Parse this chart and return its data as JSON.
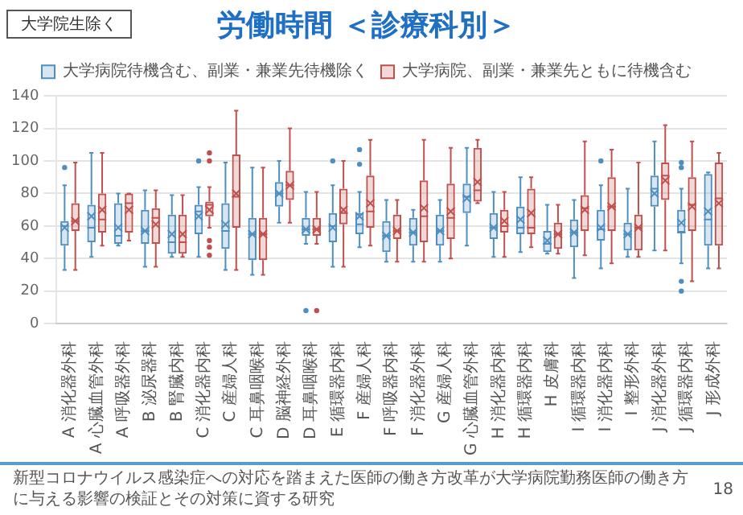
{
  "chart_data": {
    "type": "box",
    "title": "労働時間 ＜診療科別＞",
    "annotations": [
      "大学院生除く",
      "新型コロナウイルス感染症への対応を踏まえた医師の働き方改革が大学病院勤務医師の働き方に与える影響の検証とその対策に資する研究",
      "18"
    ],
    "categories": [
      "A 消化器外科",
      "A 心臓血管外科",
      "A 呼吸器外科",
      "B 泌尿器科",
      "B 腎臓内科",
      "C 消化器内科",
      "C 産婦人科",
      "C 耳鼻咽喉科",
      "D 脳神経外科",
      "D 耳鼻咽喉科",
      "E 循環器内科",
      "F 産婦人科",
      "F 呼吸器内科",
      "F 消化器外科",
      "G 産婦人科",
      "G 心臓血管外科",
      "H 消化器内科",
      "H 循環器内科",
      "H 皮膚科",
      "I 循環器内科",
      "I 消化器内科",
      "I 整形外科",
      "J 消化器外科",
      "J 循環器内科",
      "J 形成外科"
    ],
    "ylim": [
      0,
      140
    ],
    "yticks": [
      0,
      20,
      40,
      60,
      80,
      100,
      120,
      140
    ],
    "grid": "y",
    "legend": "top",
    "series": [
      {
        "name": "大学病院待機含む、副業・兼業先待機除く",
        "color": "#4f8fc0",
        "boxes": [
          {
            "low": 33,
            "q1": 48,
            "median": 60,
            "q3": 63,
            "high": 85,
            "mean": 59,
            "outliers": [
              96
            ]
          },
          {
            "low": 41,
            "q1": 50,
            "median": 59,
            "q3": 73,
            "high": 105,
            "mean": 66
          },
          {
            "low": 48,
            "q1": 49,
            "median": 54,
            "q3": 74,
            "high": 80,
            "mean": 59
          },
          {
            "low": 35,
            "q1": 49,
            "median": 57,
            "q3": 70,
            "high": 82,
            "mean": 57
          },
          {
            "low": 41,
            "q1": 43,
            "median": 50,
            "q3": 67,
            "high": 79,
            "mean": 55
          },
          {
            "low": 41,
            "q1": 55,
            "median": 69,
            "q3": 73,
            "high": 84,
            "mean": 66,
            "outliers": [
              100
            ]
          },
          {
            "low": 33,
            "q1": 46,
            "median": 57,
            "q3": 74,
            "high": 99,
            "mean": 61
          },
          {
            "low": 30,
            "q1": 39,
            "median": 55,
            "q3": 65,
            "high": 96,
            "mean": 55
          },
          {
            "low": 62,
            "q1": 72,
            "median": 80,
            "q3": 87,
            "high": 100,
            "mean": 80
          },
          {
            "low": 49,
            "q1": 54,
            "median": 58,
            "q3": 65,
            "high": 81,
            "mean": 58,
            "outliers": [
              8
            ]
          },
          {
            "low": 35,
            "q1": 50,
            "median": 60,
            "q3": 68,
            "high": 85,
            "mean": 59,
            "outliers": [
              100
            ]
          },
          {
            "low": 47,
            "q1": 55,
            "median": 61,
            "q3": 68,
            "high": 81,
            "mean": 66,
            "outliers": [
              98,
              107
            ]
          },
          {
            "low": 38,
            "q1": 44,
            "median": 54,
            "q3": 63,
            "high": 76,
            "mean": 54
          },
          {
            "low": 38,
            "q1": 48,
            "median": 56,
            "q3": 65,
            "high": 70,
            "mean": 56
          },
          {
            "low": 38,
            "q1": 48,
            "median": 57,
            "q3": 67,
            "high": 76,
            "mean": 57
          },
          {
            "low": 48,
            "q1": 68,
            "median": 78,
            "q3": 86,
            "high": 108,
            "mean": 77
          },
          {
            "low": 41,
            "q1": 52,
            "median": 59,
            "q3": 68,
            "high": 81,
            "mean": 59
          },
          {
            "low": 44,
            "q1": 55,
            "median": 59,
            "q3": 72,
            "high": 90,
            "mean": 64
          },
          {
            "low": 43,
            "q1": 44,
            "median": 49,
            "q3": 57,
            "high": 73,
            "mean": 51
          },
          {
            "low": 28,
            "q1": 47,
            "median": 56,
            "q3": 64,
            "high": 76,
            "mean": 56
          },
          {
            "low": 34,
            "q1": 51,
            "median": 58,
            "q3": 70,
            "high": 85,
            "mean": 59,
            "outliers": [
              100
            ]
          },
          {
            "low": 41,
            "q1": 45,
            "median": 55,
            "q3": 62,
            "high": 83,
            "mean": 55
          },
          {
            "low": 45,
            "q1": 72,
            "median": 83,
            "q3": 91,
            "high": 112,
            "mean": 80
          },
          {
            "low": 37,
            "q1": 56,
            "median": 56,
            "q3": 70,
            "high": 83,
            "mean": 62,
            "outliers": [
              20,
              26,
              96,
              99
            ]
          },
          {
            "low": 34,
            "q1": 48,
            "median": 64,
            "q3": 92,
            "high": 93,
            "mean": 69
          }
        ]
      },
      {
        "name": "大学病院、副業・兼業先ともに待機含む",
        "color": "#c0504d",
        "boxes": [
          {
            "low": 33,
            "q1": 57,
            "median": 63,
            "q3": 74,
            "high": 99,
            "mean": 63
          },
          {
            "low": 48,
            "q1": 56,
            "median": 64,
            "q3": 80,
            "high": 105,
            "mean": 70
          },
          {
            "low": 51,
            "q1": 56,
            "median": 74,
            "q3": 80,
            "high": 80,
            "mean": 70
          },
          {
            "low": 35,
            "q1": 49,
            "median": 65,
            "q3": 71,
            "high": 82,
            "mean": 61
          },
          {
            "low": 41,
            "q1": 43,
            "median": 50,
            "q3": 67,
            "high": 79,
            "mean": 55
          },
          {
            "low": 59,
            "q1": 66,
            "median": 73,
            "q3": 75,
            "high": 84,
            "mean": 70,
            "outliers": [
              42,
              47,
              51,
              100,
              105
            ]
          },
          {
            "low": 33,
            "q1": 59,
            "median": 78,
            "q3": 104,
            "high": 131,
            "mean": 80
          },
          {
            "low": 30,
            "q1": 39,
            "median": 55,
            "q3": 65,
            "high": 96,
            "mean": 55
          },
          {
            "low": 62,
            "q1": 76,
            "median": 85,
            "q3": 94,
            "high": 120,
            "mean": 85
          },
          {
            "low": 49,
            "q1": 54,
            "median": 58,
            "q3": 65,
            "high": 81,
            "mean": 58,
            "outliers": [
              8
            ]
          },
          {
            "low": 35,
            "q1": 61,
            "median": 68,
            "q3": 83,
            "high": 100,
            "mean": 70
          },
          {
            "low": 48,
            "q1": 59,
            "median": 69,
            "q3": 91,
            "high": 113,
            "mean": 74
          },
          {
            "low": 38,
            "q1": 52,
            "median": 57,
            "q3": 67,
            "high": 76,
            "mean": 57
          },
          {
            "low": 38,
            "q1": 50,
            "median": 66,
            "q3": 88,
            "high": 113,
            "mean": 71
          },
          {
            "low": 40,
            "q1": 52,
            "median": 65,
            "q3": 86,
            "high": 108,
            "mean": 69
          },
          {
            "low": 74,
            "q1": 75,
            "median": 82,
            "q3": 108,
            "high": 113,
            "mean": 87
          },
          {
            "low": 41,
            "q1": 56,
            "median": 60,
            "q3": 70,
            "high": 81,
            "mean": 63
          },
          {
            "low": 47,
            "q1": 55,
            "median": 59,
            "q3": 83,
            "high": 90,
            "mean": 68
          },
          {
            "low": 43,
            "q1": 46,
            "median": 55,
            "q3": 62,
            "high": 73,
            "mean": 55
          },
          {
            "low": 42,
            "q1": 57,
            "median": 71,
            "q3": 79,
            "high": 112,
            "mean": 70
          },
          {
            "low": 37,
            "q1": 57,
            "median": 72,
            "q3": 90,
            "high": 107,
            "mean": 72
          },
          {
            "low": 41,
            "q1": 45,
            "median": 59,
            "q3": 67,
            "high": 99,
            "mean": 59
          },
          {
            "low": 45,
            "q1": 76,
            "median": 91,
            "q3": 99,
            "high": 122,
            "mean": 88
          },
          {
            "low": 26,
            "q1": 57,
            "median": 73,
            "q3": 90,
            "high": 112,
            "mean": 72
          },
          {
            "low": 34,
            "q1": 48,
            "median": 77,
            "q3": 99,
            "high": 105,
            "mean": 74
          }
        ]
      }
    ]
  }
}
